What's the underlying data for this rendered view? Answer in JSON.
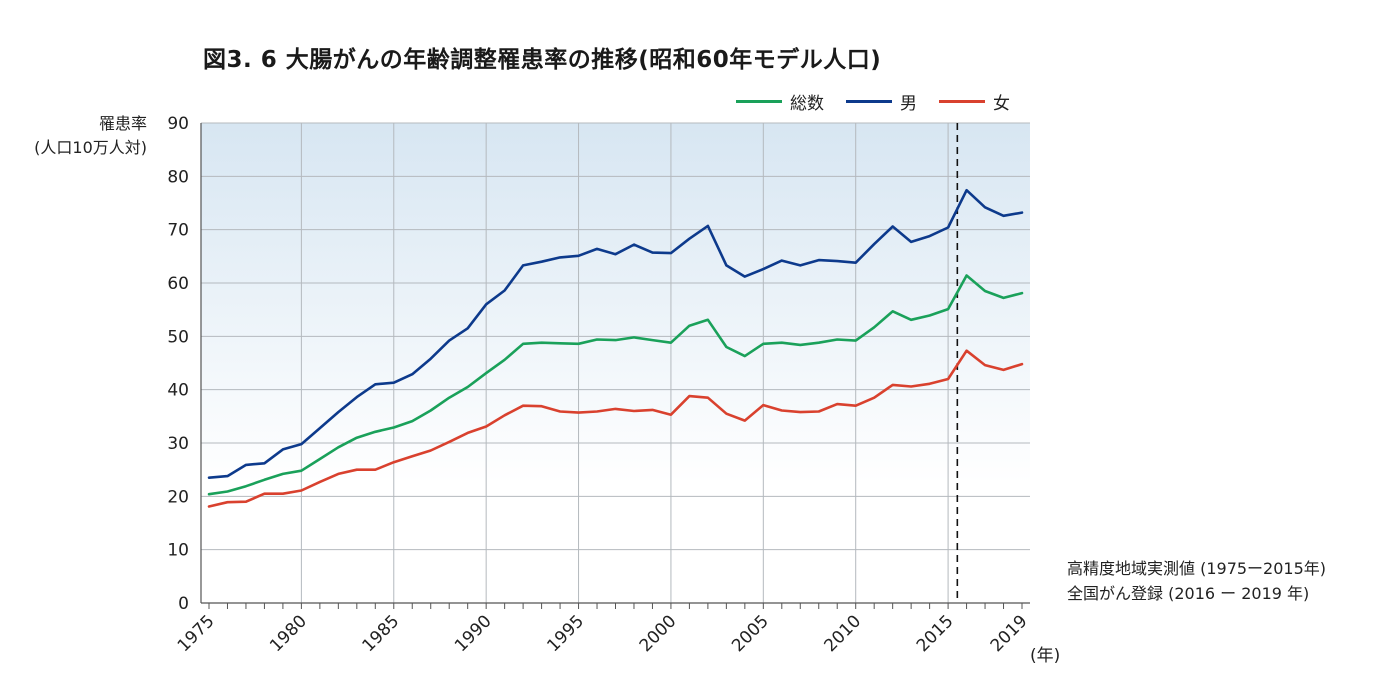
{
  "title": "図3. 6 大腸がんの年齢調整罹患率の推移(昭和60年モデル人口)",
  "ylabel_lines": [
    "罹患率",
    "(人口10万人対)"
  ],
  "source_lines": [
    "高精度地域実測値 (1975ー2015年)",
    "全国がん登録 (2016 ー 2019 年)"
  ],
  "chart_data": {
    "type": "line",
    "title": "図3. 6 大腸がんの年齢調整罹患率の推移(昭和60年モデル人口)",
    "ylabel": "罹患率 (人口10万人対)",
    "xlabel": "(年)",
    "ylim": [
      0,
      90
    ],
    "xlim": [
      1975,
      2019
    ],
    "yticks": [
      "0",
      "10",
      "20",
      "30",
      "40",
      "50",
      "60",
      "70",
      "80",
      "90"
    ],
    "xticks": [
      "1975",
      "1980",
      "1985",
      "1990",
      "1995",
      "2000",
      "2005",
      "2010",
      "2015",
      "2019"
    ],
    "grid": true,
    "legend_position": "top-right",
    "reference_line": {
      "x": 2015.5,
      "style": "dashed"
    },
    "x": [
      1975,
      1976,
      1977,
      1978,
      1979,
      1980,
      1981,
      1982,
      1983,
      1984,
      1985,
      1986,
      1987,
      1988,
      1989,
      1990,
      1991,
      1992,
      1993,
      1994,
      1995,
      1996,
      1997,
      1998,
      1999,
      2000,
      2001,
      2002,
      2003,
      2004,
      2005,
      2006,
      2007,
      2008,
      2009,
      2010,
      2011,
      2012,
      2013,
      2014,
      2015,
      2016,
      2017,
      2018,
      2019
    ],
    "series": [
      {
        "name": "総数",
        "color": "#1aa15a",
        "values": [
          20.4,
          20.9,
          21.9,
          23.1,
          24.2,
          24.8,
          27.0,
          29.2,
          31.0,
          32.1,
          32.9,
          34.1,
          36.1,
          38.5,
          40.5,
          43.1,
          45.6,
          48.6,
          48.8,
          48.7,
          48.6,
          49.4,
          49.3,
          49.8,
          49.3,
          48.8,
          52.0,
          53.1,
          48.0,
          46.3,
          48.6,
          48.8,
          48.4,
          48.8,
          49.4,
          49.2,
          51.7,
          54.7,
          53.1,
          53.9,
          55.1,
          61.4,
          58.5,
          57.2,
          58.1
        ]
      },
      {
        "name": "男",
        "color": "#0d3a8c",
        "values": [
          23.5,
          23.8,
          25.9,
          26.2,
          28.8,
          29.8,
          32.8,
          35.8,
          38.6,
          41.0,
          41.3,
          42.9,
          45.8,
          49.2,
          51.5,
          56.0,
          58.6,
          63.3,
          64.0,
          64.8,
          65.1,
          66.4,
          65.4,
          67.2,
          65.7,
          65.6,
          68.3,
          70.7,
          63.3,
          61.2,
          62.6,
          64.2,
          63.3,
          64.3,
          64.1,
          63.8,
          67.3,
          70.6,
          67.7,
          68.8,
          70.4,
          77.4,
          74.2,
          72.6,
          73.2
        ]
      },
      {
        "name": "女",
        "color": "#d9412e",
        "values": [
          18.1,
          18.9,
          19.0,
          20.5,
          20.5,
          21.1,
          22.7,
          24.2,
          25.0,
          25.0,
          26.4,
          27.5,
          28.6,
          30.2,
          31.9,
          33.1,
          35.2,
          37.0,
          36.9,
          35.9,
          35.7,
          35.9,
          36.4,
          36.0,
          36.2,
          35.3,
          38.8,
          38.5,
          35.5,
          34.2,
          37.1,
          36.1,
          35.8,
          35.9,
          37.3,
          37.0,
          38.5,
          40.9,
          40.6,
          41.1,
          42.0,
          47.3,
          44.6,
          43.7,
          44.8
        ]
      }
    ]
  }
}
